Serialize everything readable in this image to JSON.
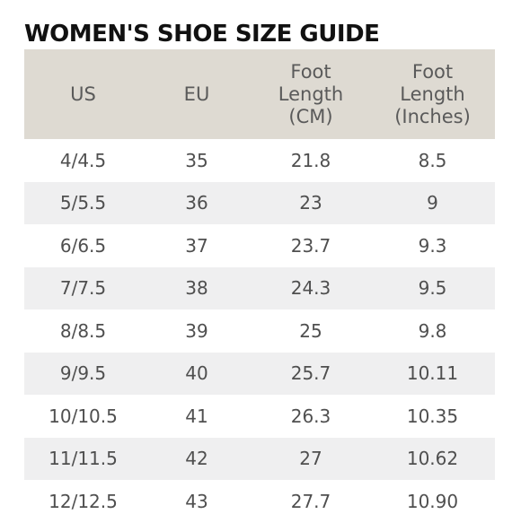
{
  "title": "WOMEN'S SHOE SIZE GUIDE",
  "headers": {
    "us": "US",
    "eu": "EU",
    "foot_cm": [
      "Foot",
      "Length",
      "(CM)"
    ],
    "foot_in": [
      "Foot",
      "Length",
      "(Inches)"
    ]
  },
  "rows": [
    {
      "us": "4/4.5",
      "eu": "35",
      "cm": "21.8",
      "in": "8.5"
    },
    {
      "us": "5/5.5",
      "eu": "36",
      "cm": "23",
      "in": "9"
    },
    {
      "us": "6/6.5",
      "eu": "37",
      "cm": "23.7",
      "in": "9.3"
    },
    {
      "us": "7/7.5",
      "eu": "38",
      "cm": "24.3",
      "in": "9.5"
    },
    {
      "us": "8/8.5",
      "eu": "39",
      "cm": "25",
      "in": "9.8"
    },
    {
      "us": "9/9.5",
      "eu": "40",
      "cm": "25.7",
      "in": "10.11"
    },
    {
      "us": "10/10.5",
      "eu": "41",
      "cm": "26.3",
      "in": "10.35"
    },
    {
      "us": "11/11.5",
      "eu": "42",
      "cm": "27",
      "in": "10.62"
    },
    {
      "us": "12/12.5",
      "eu": "43",
      "cm": "27.7",
      "in": "10.90"
    }
  ],
  "colors": {
    "header_bg": "#dedad2",
    "stripe_bg": "#efeff0",
    "title": "#111111",
    "text": "#4f4f4f"
  }
}
